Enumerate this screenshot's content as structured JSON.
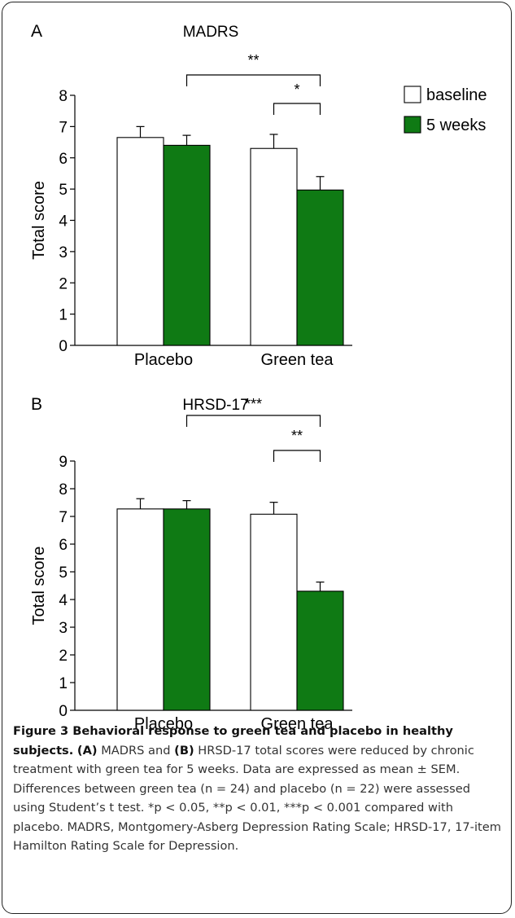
{
  "chart_data": [
    {
      "type": "bar",
      "panel": "A",
      "title": "MADRS",
      "ylabel": "Total score",
      "categories": [
        "Placebo",
        "Green tea"
      ],
      "ylim": [
        0,
        8
      ],
      "yticks": [
        "0",
        "1",
        "2",
        "3",
        "4",
        "5",
        "6",
        "7",
        "8"
      ],
      "series": [
        {
          "name": "baseline",
          "color": "#ffffff",
          "values": [
            6.65,
            6.3
          ],
          "sem": [
            0.35,
            0.45
          ]
        },
        {
          "name": "5 weeks",
          "color": "#0f7a14",
          "values": [
            6.4,
            4.97
          ],
          "sem": [
            0.32,
            0.43
          ]
        }
      ],
      "significance": [
        {
          "label": "**",
          "from": "Placebo 5 weeks",
          "to": "Green tea 5 weeks"
        },
        {
          "label": "*",
          "from": "Green tea baseline",
          "to": "Green tea 5 weeks"
        }
      ]
    },
    {
      "type": "bar",
      "panel": "B",
      "title": "HRSD-17",
      "ylabel": "Total score",
      "categories": [
        "Placebo",
        "Green tea"
      ],
      "ylim": [
        0,
        9
      ],
      "yticks": [
        "0",
        "1",
        "2",
        "3",
        "4",
        "5",
        "6",
        "7",
        "8",
        "9"
      ],
      "series": [
        {
          "name": "baseline",
          "color": "#ffffff",
          "values": [
            7.27,
            7.08
          ],
          "sem": [
            0.37,
            0.43
          ]
        },
        {
          "name": "5 weeks",
          "color": "#0f7a14",
          "values": [
            7.27,
            4.3
          ],
          "sem": [
            0.3,
            0.33
          ]
        }
      ],
      "significance": [
        {
          "label": "***",
          "from": "Placebo 5 weeks",
          "to": "Green tea 5 weeks"
        },
        {
          "label": "**",
          "from": "Green tea baseline",
          "to": "Green tea 5 weeks"
        }
      ]
    }
  ],
  "caption": {
    "lead": "Figure 3 Behavioral response to green tea and placebo in healthy subjects.",
    "a_label": "(A)",
    "a_text": "MADRS and",
    "b_label": "(B)",
    "body": "HRSD-17 total scores were reduced by chronic treatment with green tea for 5 weeks. Data are expressed as mean ± SEM. Differences between green tea (n = 24) and placebo (n = 22) were assessed using Student’s t test. *p < 0.05, **p < 0.01, ***p < 0.001 compared with placebo. MADRS, Montgomery-Asberg Depression Rating Scale; HRSD-17, 17-item Hamilton Rating Scale for Depression."
  }
}
